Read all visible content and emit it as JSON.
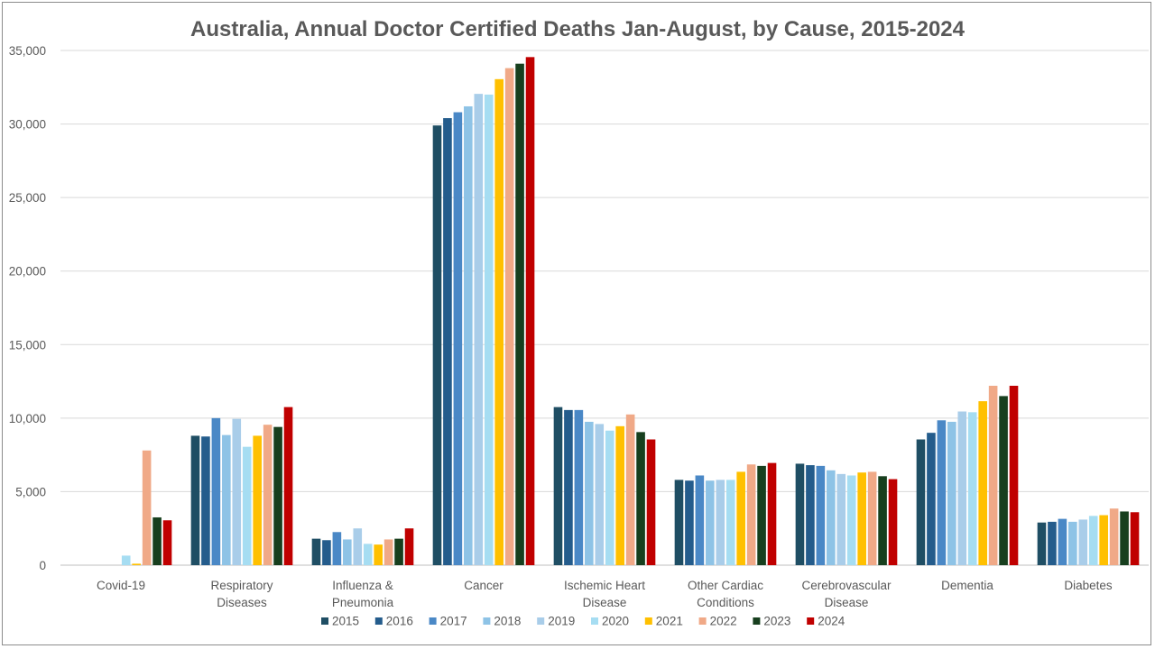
{
  "chart_data": {
    "type": "bar",
    "title": "Australia, Annual Doctor Certified Deaths Jan-August, by Cause, 2015-2024",
    "xlabel": "",
    "ylabel": "",
    "ylim": [
      0,
      35000
    ],
    "yticks": [
      0,
      5000,
      10000,
      15000,
      20000,
      25000,
      30000,
      35000
    ],
    "ytick_labels": [
      "0",
      "5,000",
      "10,000",
      "15,000",
      "20,000",
      "25,000",
      "30,000",
      "35,000"
    ],
    "grid": true,
    "legend_position": "bottom",
    "categories": [
      [
        "Covid-19"
      ],
      [
        "Respiratory",
        "Diseases"
      ],
      [
        "Influenza &",
        "Pneumonia"
      ],
      [
        "Cancer"
      ],
      [
        "Ischemic Heart",
        "Disease"
      ],
      [
        "Other Cardiac",
        "Conditions"
      ],
      [
        "Cerebrovascular",
        "Disease"
      ],
      [
        "Dementia"
      ],
      [
        "Diabetes"
      ]
    ],
    "series": [
      {
        "name": "2015",
        "color": "#1f4e64",
        "values": [
          0,
          8800,
          1800,
          29900,
          10750,
          5800,
          6900,
          8550,
          2900
        ]
      },
      {
        "name": "2016",
        "color": "#245c8c",
        "values": [
          0,
          8750,
          1700,
          30400,
          10550,
          5750,
          6800,
          9000,
          2950
        ]
      },
      {
        "name": "2017",
        "color": "#4a88c6",
        "values": [
          0,
          10000,
          2250,
          30800,
          10550,
          6100,
          6750,
          9850,
          3150
        ]
      },
      {
        "name": "2018",
        "color": "#8ec3e6",
        "values": [
          0,
          8850,
          1750,
          31200,
          9750,
          5750,
          6450,
          9750,
          2950
        ]
      },
      {
        "name": "2019",
        "color": "#a9cde9",
        "values": [
          0,
          9950,
          2500,
          32050,
          9600,
          5800,
          6200,
          10450,
          3100
        ]
      },
      {
        "name": "2020",
        "color": "#a6ddf2",
        "values": [
          650,
          8050,
          1450,
          32000,
          9150,
          5800,
          6100,
          10400,
          3350
        ]
      },
      {
        "name": "2021",
        "color": "#ffc000",
        "values": [
          100,
          8800,
          1400,
          33050,
          9450,
          6350,
          6300,
          11150,
          3400
        ]
      },
      {
        "name": "2022",
        "color": "#f0a987",
        "values": [
          7800,
          9550,
          1750,
          33800,
          10250,
          6850,
          6350,
          12200,
          3850
        ]
      },
      {
        "name": "2023",
        "color": "#173f1e",
        "values": [
          3250,
          9400,
          1800,
          34100,
          9050,
          6750,
          6050,
          11500,
          3650
        ]
      },
      {
        "name": "2024",
        "color": "#c00000",
        "values": [
          3050,
          10750,
          2500,
          34550,
          8550,
          6950,
          5850,
          12200,
          3600
        ]
      }
    ]
  }
}
